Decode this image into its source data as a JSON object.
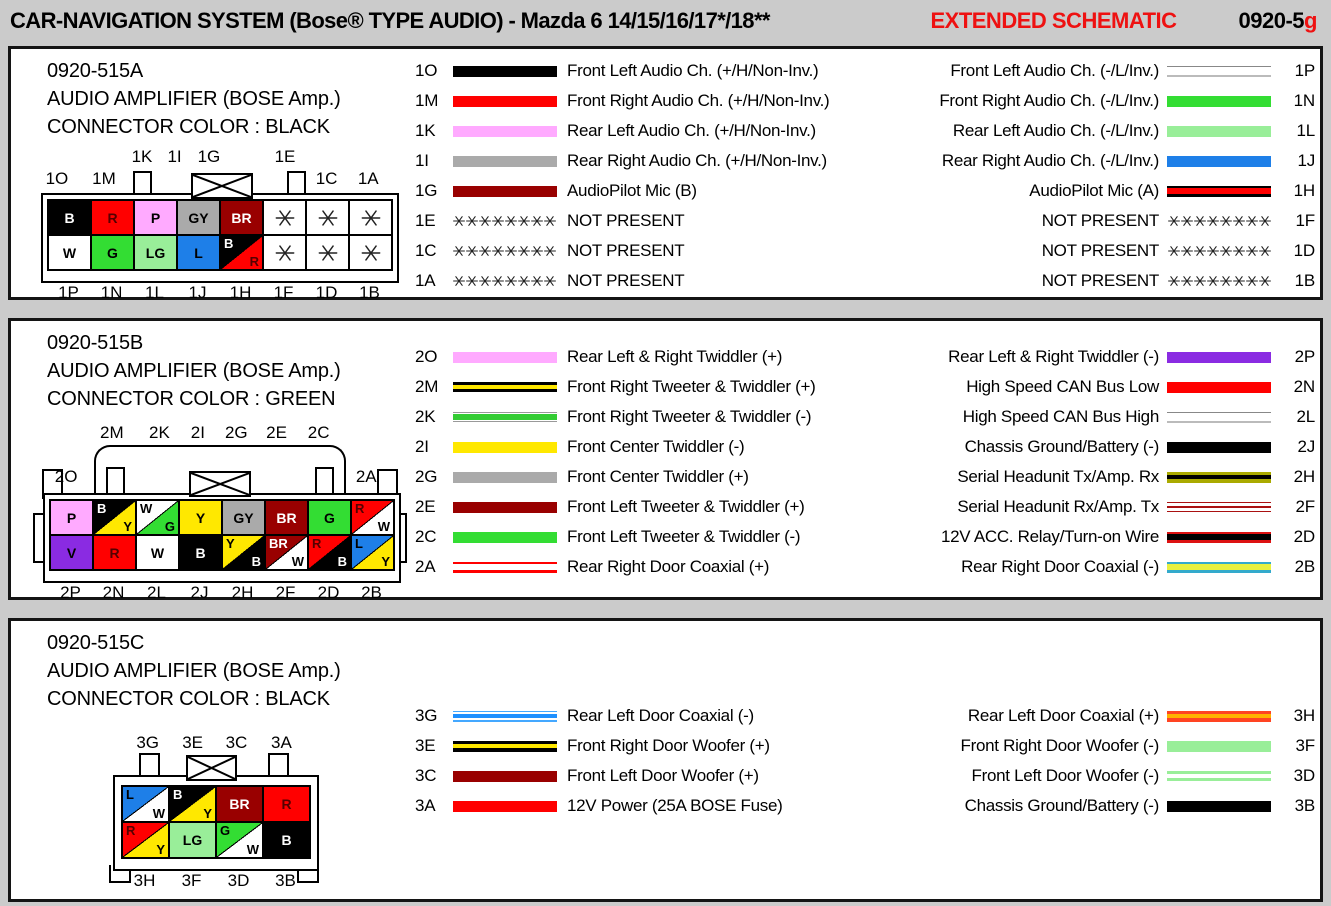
{
  "header": {
    "title": "CAR-NAVIGATION SYSTEM (Bose® TYPE AUDIO) - Mazda 6 14/15/16/17*/18**",
    "schematic_label": "EXTENDED SCHEMATIC",
    "page_code": "0920-5",
    "page_code_suffix": "g"
  },
  "colors": {
    "accent_red": "#EE1111",
    "page_background": "#CBCBCB"
  },
  "sections": [
    {
      "code": "0920-515A",
      "name": "AUDIO AMPLIFIER (BOSE Amp.)",
      "connector_color": "CONNECTOR COLOR : BLACK",
      "top_pins": [
        "1O",
        "1M",
        "1K",
        "1I",
        "1G",
        "1E",
        "1C",
        "1A"
      ],
      "bottom_pins": [
        "1P",
        "1N",
        "1L",
        "1J",
        "1H",
        "1F",
        "1D",
        "1B"
      ],
      "cells_top": [
        {
          "label": "B",
          "bg": "#000000",
          "fg": "#FFFFFF"
        },
        {
          "label": "R",
          "bg": "#FF0000",
          "fg": "#550000"
        },
        {
          "label": "P",
          "bg": "#FFAAFF",
          "fg": "#000000"
        },
        {
          "label": "GY",
          "bg": "#AAAAAA",
          "fg": "#000000"
        },
        {
          "label": "BR",
          "bg": "#990000",
          "fg": "#FFFFFF"
        },
        {
          "absent": true
        },
        {
          "absent": true
        },
        {
          "absent": true
        }
      ],
      "cells_bottom": [
        {
          "label": "W",
          "bg": "#FFFFFF",
          "fg": "#000000"
        },
        {
          "label": "G",
          "bg": "#33DD33",
          "fg": "#000000"
        },
        {
          "label": "LG",
          "bg": "#99EE99",
          "fg": "#000000"
        },
        {
          "label": "L",
          "bg": "#1E7FE8",
          "fg": "#000000"
        },
        {
          "split": [
            {
              "label": "B",
              "bg": "#000000",
              "fg": "#FFFFFF"
            },
            {
              "label": "R",
              "bg": "#FF0000",
              "fg": "#550000"
            }
          ]
        },
        {
          "absent": true
        },
        {
          "absent": true
        },
        {
          "absent": true
        }
      ],
      "left_rows": [
        {
          "pin": "1O",
          "label": "Front Left Audio Ch. (+/H/Non-Inv.)",
          "wire": [
            [
              "#000000",
              1
            ]
          ]
        },
        {
          "pin": "1M",
          "label": "Front Right Audio Ch. (+/H/Non-Inv.)",
          "wire": [
            [
              "#FF0000",
              1
            ]
          ]
        },
        {
          "pin": "1K",
          "label": "Rear Left Audio Ch. (+/H/Non-Inv.)",
          "wire": [
            [
              "#FFAAFF",
              1
            ]
          ]
        },
        {
          "pin": "1I",
          "label": "Rear Right Audio Ch. (+/H/Non-Inv.)",
          "wire": [
            [
              "#AAAAAA",
              1
            ]
          ]
        },
        {
          "pin": "1G",
          "label": "AudioPilot Mic (B)",
          "wire": [
            [
              "#990000",
              1
            ]
          ]
        },
        {
          "pin": "1E",
          "label": "NOT PRESENT",
          "wire": "absent"
        },
        {
          "pin": "1C",
          "label": "NOT PRESENT",
          "wire": "absent"
        },
        {
          "pin": "1A",
          "label": "NOT PRESENT",
          "wire": "absent"
        }
      ],
      "right_rows": [
        {
          "pin": "1P",
          "label": "Front Left Audio Ch. (-/L/Inv.)",
          "wire": [
            [
              "#888888",
              0.14
            ],
            [
              "#FFFFFF",
              0.72
            ],
            [
              "#BBBBBB",
              0.14
            ]
          ]
        },
        {
          "pin": "1N",
          "label": "Front Right Audio Ch. (-/L/Inv.)",
          "wire": [
            [
              "#33DD33",
              1
            ]
          ]
        },
        {
          "pin": "1L",
          "label": "Rear Left Audio Ch. (-/L/Inv.)",
          "wire": [
            [
              "#99EE99",
              1
            ]
          ]
        },
        {
          "pin": "1J",
          "label": "Rear Right Audio Ch. (-/L/Inv.)",
          "wire": [
            [
              "#1E7FE8",
              1
            ]
          ]
        },
        {
          "pin": "1H",
          "label": "AudioPilot Mic (A)",
          "wire": [
            [
              "#000000",
              0.22
            ],
            [
              "#FF0000",
              0.56
            ],
            [
              "#000000",
              0.22
            ]
          ]
        },
        {
          "pin": "1F",
          "label": "NOT PRESENT",
          "wire": "absent"
        },
        {
          "pin": "1D",
          "label": "NOT PRESENT",
          "wire": "absent"
        },
        {
          "pin": "1B",
          "label": "NOT PRESENT",
          "wire": "absent"
        }
      ]
    },
    {
      "code": "0920-515B",
      "name": "AUDIO AMPLIFIER (BOSE Amp.)",
      "connector_color": "CONNECTOR COLOR : GREEN",
      "top_pins": [
        "2O",
        "2M",
        "2K",
        "2I",
        "2G",
        "2E",
        "2C",
        "2A"
      ],
      "bottom_pins": [
        "2P",
        "2N",
        "2L",
        "2J",
        "2H",
        "2F",
        "2D",
        "2B"
      ],
      "cells_top": [
        {
          "label": "P",
          "bg": "#FFAAFF",
          "fg": "#000000"
        },
        {
          "split": [
            {
              "label": "B",
              "bg": "#000000",
              "fg": "#FFFFFF"
            },
            {
              "label": "Y",
              "bg": "#FFE800",
              "fg": "#000000"
            }
          ]
        },
        {
          "split": [
            {
              "label": "W",
              "bg": "#FFFFFF",
              "fg": "#000000"
            },
            {
              "label": "G",
              "bg": "#33DD33",
              "fg": "#000000"
            }
          ]
        },
        {
          "label": "Y",
          "bg": "#FFE800",
          "fg": "#000000"
        },
        {
          "label": "GY",
          "bg": "#AAAAAA",
          "fg": "#000000"
        },
        {
          "label": "BR",
          "bg": "#990000",
          "fg": "#FFFFFF"
        },
        {
          "label": "G",
          "bg": "#33DD33",
          "fg": "#000000"
        },
        {
          "split": [
            {
              "label": "R",
              "bg": "#FF0000",
              "fg": "#550000"
            },
            {
              "label": "W",
              "bg": "#FFFFFF",
              "fg": "#000000"
            }
          ]
        }
      ],
      "cells_bottom": [
        {
          "label": "V",
          "bg": "#8A2BE2",
          "fg": "#000000"
        },
        {
          "label": "R",
          "bg": "#FF0000",
          "fg": "#550000"
        },
        {
          "label": "W",
          "bg": "#FFFFFF",
          "fg": "#000000"
        },
        {
          "label": "B",
          "bg": "#000000",
          "fg": "#FFFFFF"
        },
        {
          "split": [
            {
              "label": "Y",
              "bg": "#FFE800",
              "fg": "#000000"
            },
            {
              "label": "B",
              "bg": "#000000",
              "fg": "#FFFFFF"
            }
          ]
        },
        {
          "split": [
            {
              "label": "BR",
              "bg": "#990000",
              "fg": "#FFFFFF"
            },
            {
              "label": "W",
              "bg": "#FFFFFF",
              "fg": "#000000"
            }
          ]
        },
        {
          "split": [
            {
              "label": "R",
              "bg": "#FF0000",
              "fg": "#550000"
            },
            {
              "label": "B",
              "bg": "#000000",
              "fg": "#FFFFFF"
            }
          ]
        },
        {
          "split": [
            {
              "label": "L",
              "bg": "#1E7FE8",
              "fg": "#000000"
            },
            {
              "label": "Y",
              "bg": "#FFE800",
              "fg": "#000000"
            }
          ]
        }
      ],
      "left_rows": [
        {
          "pin": "2O",
          "label": "Rear Left & Right Twiddler (+)",
          "wire": [
            [
              "#FFAAFF",
              1
            ]
          ]
        },
        {
          "pin": "2M",
          "label": "Front Right Tweeter & Twiddler (+)",
          "wire": [
            [
              "#000000",
              0.32
            ],
            [
              "#FFE800",
              0.36
            ],
            [
              "#000000",
              0.32
            ]
          ]
        },
        {
          "pin": "2K",
          "label": "Front Right Tweeter & Twiddler (-)",
          "wire": [
            [
              "#999999",
              0.1
            ],
            [
              "#FFFFFF",
              0.16
            ],
            [
              "#33CC33",
              0.48
            ],
            [
              "#FFFFFF",
              0.16
            ],
            [
              "#999999",
              0.1
            ]
          ]
        },
        {
          "pin": "2I",
          "label": "Front Center Twiddler (-)",
          "wire": [
            [
              "#FFE800",
              1
            ]
          ]
        },
        {
          "pin": "2G",
          "label": "Front Center Twiddler (+)",
          "wire": [
            [
              "#AAAAAA",
              1
            ]
          ]
        },
        {
          "pin": "2E",
          "label": "Front Left Tweeter & Twiddler (+)",
          "wire": [
            [
              "#990000",
              1
            ]
          ]
        },
        {
          "pin": "2C",
          "label": "Front Left Tweeter & Twiddler (-)",
          "wire": [
            [
              "#33DD33",
              1
            ]
          ]
        },
        {
          "pin": "2A",
          "label": "Rear Right Door Coaxial (+)",
          "wire": [
            [
              "#FF0000",
              0.24
            ],
            [
              "#FFFFFF",
              0.52
            ],
            [
              "#FF0000",
              0.24
            ]
          ]
        }
      ],
      "right_rows": [
        {
          "pin": "2P",
          "label": "Rear Left & Right Twiddler (-)",
          "wire": [
            [
              "#8A2BE2",
              1
            ]
          ]
        },
        {
          "pin": "2N",
          "label": "High Speed CAN Bus Low",
          "wire": [
            [
              "#FF0000",
              1
            ]
          ]
        },
        {
          "pin": "2L",
          "label": "High Speed CAN Bus High",
          "wire": [
            [
              "#888888",
              0.14
            ],
            [
              "#FFFFFF",
              0.72
            ],
            [
              "#BBBBBB",
              0.14
            ]
          ]
        },
        {
          "pin": "2J",
          "label": "Chassis Ground/Battery (-)",
          "wire": [
            [
              "#000000",
              1
            ]
          ]
        },
        {
          "pin": "2H",
          "label": "Serial Headunit Tx/Amp. Rx",
          "wire": [
            [
              "#AAAA00",
              0.3
            ],
            [
              "#000000",
              0.4
            ],
            [
              "#AAAA00",
              0.3
            ]
          ]
        },
        {
          "pin": "2F",
          "label": "Serial Headunit Rx/Amp. Tx",
          "wire": [
            [
              "#AA1111",
              0.14
            ],
            [
              "#FFFFFF",
              0.29
            ],
            [
              "#AA1111",
              0.14
            ],
            [
              "#FFFFFF",
              0.29
            ],
            [
              "#AA1111",
              0.14
            ]
          ]
        },
        {
          "pin": "2D",
          "label": "12V ACC. Relay/Turn-on Wire",
          "wire": [
            [
              "#DD1111",
              0.24
            ],
            [
              "#000000",
              0.52
            ],
            [
              "#DD1111",
              0.24
            ]
          ]
        },
        {
          "pin": "2B",
          "label": "Rear Right Door Coaxial (-)",
          "wire": [
            [
              "#33AACC",
              0.22
            ],
            [
              "#E8F040",
              0.56
            ],
            [
              "#33AACC",
              0.22
            ]
          ]
        }
      ]
    },
    {
      "code": "0920-515C",
      "name": "AUDIO AMPLIFIER (BOSE Amp.)",
      "connector_color": "CONNECTOR COLOR : BLACK",
      "top_pins": [
        "3G",
        "3E",
        "3C",
        "3A"
      ],
      "bottom_pins": [
        "3H",
        "3F",
        "3D",
        "3B"
      ],
      "cells_top": [
        {
          "split": [
            {
              "label": "L",
              "bg": "#1E7FE8",
              "fg": "#000000"
            },
            {
              "label": "W",
              "bg": "#FFFFFF",
              "fg": "#000000"
            }
          ]
        },
        {
          "split": [
            {
              "label": "B",
              "bg": "#000000",
              "fg": "#FFFFFF"
            },
            {
              "label": "Y",
              "bg": "#FFE800",
              "fg": "#000000"
            }
          ]
        },
        {
          "label": "BR",
          "bg": "#990000",
          "fg": "#FFFFFF"
        },
        {
          "label": "R",
          "bg": "#FF0000",
          "fg": "#550000"
        }
      ],
      "cells_bottom": [
        {
          "split": [
            {
              "label": "R",
              "bg": "#FF0000",
              "fg": "#550000"
            },
            {
              "label": "Y",
              "bg": "#FFE800",
              "fg": "#000000"
            }
          ]
        },
        {
          "label": "LG",
          "bg": "#99EE99",
          "fg": "#000000"
        },
        {
          "split": [
            {
              "label": "G",
              "bg": "#33DD33",
              "fg": "#000000"
            },
            {
              "label": "W",
              "bg": "#FFFFFF",
              "fg": "#000000"
            }
          ]
        },
        {
          "label": "B",
          "bg": "#000000",
          "fg": "#FFFFFF"
        }
      ],
      "left_rows": [
        {
          "pin": "3G",
          "label": "Rear Left Door Coaxial (-)",
          "wire": [
            [
              "#44A8FF",
              0.18
            ],
            [
              "#FFFFFF",
              0.17
            ],
            [
              "#1E90FF",
              0.3
            ],
            [
              "#FFFFFF",
              0.17
            ],
            [
              "#44A8FF",
              0.18
            ]
          ]
        },
        {
          "pin": "3E",
          "label": "Front Right Door Woofer (+)",
          "wire": [
            [
              "#000000",
              0.28
            ],
            [
              "#FFE800",
              0.44
            ],
            [
              "#000000",
              0.28
            ]
          ]
        },
        {
          "pin": "3C",
          "label": "Front Left Door Woofer (+)",
          "wire": [
            [
              "#990000",
              1
            ]
          ]
        },
        {
          "pin": "3A",
          "label": "12V Power (25A BOSE Fuse)",
          "wire": [
            [
              "#FF0000",
              1
            ]
          ]
        }
      ],
      "right_rows": [
        {
          "pin": "3H",
          "label": "Rear Left Door Coaxial (+)",
          "wire": [
            [
              "#FF4422",
              0.3
            ],
            [
              "#FFB300",
              0.4
            ],
            [
              "#FF4422",
              0.3
            ]
          ]
        },
        {
          "pin": "3F",
          "label": "Front Right Door Woofer (-)",
          "wire": [
            [
              "#99EE99",
              1
            ]
          ]
        },
        {
          "pin": "3D",
          "label": "Front Left Door Woofer (-)",
          "wire": [
            [
              "#99EE99",
              0.36
            ],
            [
              "#FFFFFF",
              0.28
            ],
            [
              "#99EE99",
              0.36
            ]
          ]
        },
        {
          "pin": "3B",
          "label": "Chassis Ground/Battery (-)",
          "wire": [
            [
              "#000000",
              1
            ]
          ]
        }
      ]
    }
  ]
}
